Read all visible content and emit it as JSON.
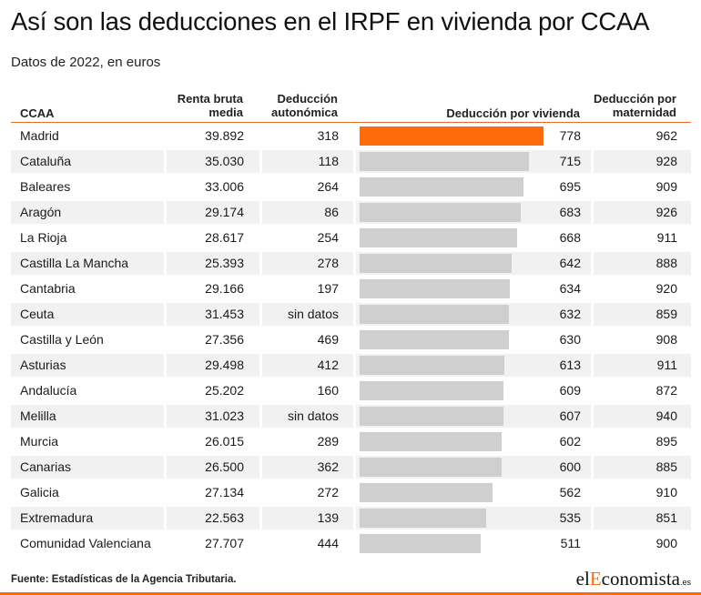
{
  "title": "Así son las deducciones en el IRPF en vivienda por CCAA",
  "subtitle": "Datos de 2022, en euros",
  "headers": {
    "ccaa": "CCAA",
    "renta_l1": "Renta bruta",
    "renta_l2": "media",
    "ded_l1": "Deducción",
    "ded_l2": "autonómica",
    "vivienda": "Deducción por vivienda",
    "mat_l1": "Deducción por",
    "mat_l2": "maternidad"
  },
  "chart_data": {
    "type": "table",
    "columns": [
      "CCAA",
      "Renta bruta media",
      "Deducción autonómica",
      "Deducción por vivienda",
      "Deducción por maternidad"
    ],
    "highlight_row": "Madrid",
    "colors": {
      "highlight": "#ff6b0b",
      "bar": "#cfcfcf",
      "accent": "#e8692a"
    },
    "rows": [
      {
        "ccaa": "Madrid",
        "renta": "39.892",
        "autonomica": "318",
        "vivienda": 778,
        "maternidad": "962"
      },
      {
        "ccaa": "Cataluña",
        "renta": "35.030",
        "autonomica": "118",
        "vivienda": 715,
        "maternidad": "928"
      },
      {
        "ccaa": "Baleares",
        "renta": "33.006",
        "autonomica": "264",
        "vivienda": 695,
        "maternidad": "909"
      },
      {
        "ccaa": "Aragón",
        "renta": "29.174",
        "autonomica": "86",
        "vivienda": 683,
        "maternidad": "926"
      },
      {
        "ccaa": "La Rioja",
        "renta": "28.617",
        "autonomica": "254",
        "vivienda": 668,
        "maternidad": "911"
      },
      {
        "ccaa": "Castilla La Mancha",
        "renta": "25.393",
        "autonomica": "278",
        "vivienda": 642,
        "maternidad": "888"
      },
      {
        "ccaa": "Cantabria",
        "renta": "29.166",
        "autonomica": "197",
        "vivienda": 634,
        "maternidad": "920"
      },
      {
        "ccaa": "Ceuta",
        "renta": "31.453",
        "autonomica": "sin datos",
        "vivienda": 632,
        "maternidad": "859"
      },
      {
        "ccaa": "Castilla y León",
        "renta": "27.356",
        "autonomica": "469",
        "vivienda": 630,
        "maternidad": "908"
      },
      {
        "ccaa": "Asturias",
        "renta": "29.498",
        "autonomica": "412",
        "vivienda": 613,
        "maternidad": "911"
      },
      {
        "ccaa": "Andalucía",
        "renta": "25.202",
        "autonomica": "160",
        "vivienda": 609,
        "maternidad": "872"
      },
      {
        "ccaa": "Melilla",
        "renta": "31.023",
        "autonomica": "sin datos",
        "vivienda": 607,
        "maternidad": "940"
      },
      {
        "ccaa": "Murcia",
        "renta": "26.015",
        "autonomica": "289",
        "vivienda": 602,
        "maternidad": "895"
      },
      {
        "ccaa": "Canarias",
        "renta": "26.500",
        "autonomica": "362",
        "vivienda": 600,
        "maternidad": "885"
      },
      {
        "ccaa": "Galicia",
        "renta": "27.134",
        "autonomica": "272",
        "vivienda": 562,
        "maternidad": "910"
      },
      {
        "ccaa": "Extremadura",
        "renta": "22.563",
        "autonomica": "139",
        "vivienda": 535,
        "maternidad": "851"
      },
      {
        "ccaa": "Comunidad Valenciana",
        "renta": "27.707",
        "autonomica": "444",
        "vivienda": 511,
        "maternidad": "900"
      }
    ]
  },
  "footer": {
    "source": "Fuente: Estadísticas de la Agencia Tributaria.",
    "logo_part1": "el",
    "logo_part2": "E",
    "logo_part3": "conomista",
    "logo_tld": ".es"
  }
}
